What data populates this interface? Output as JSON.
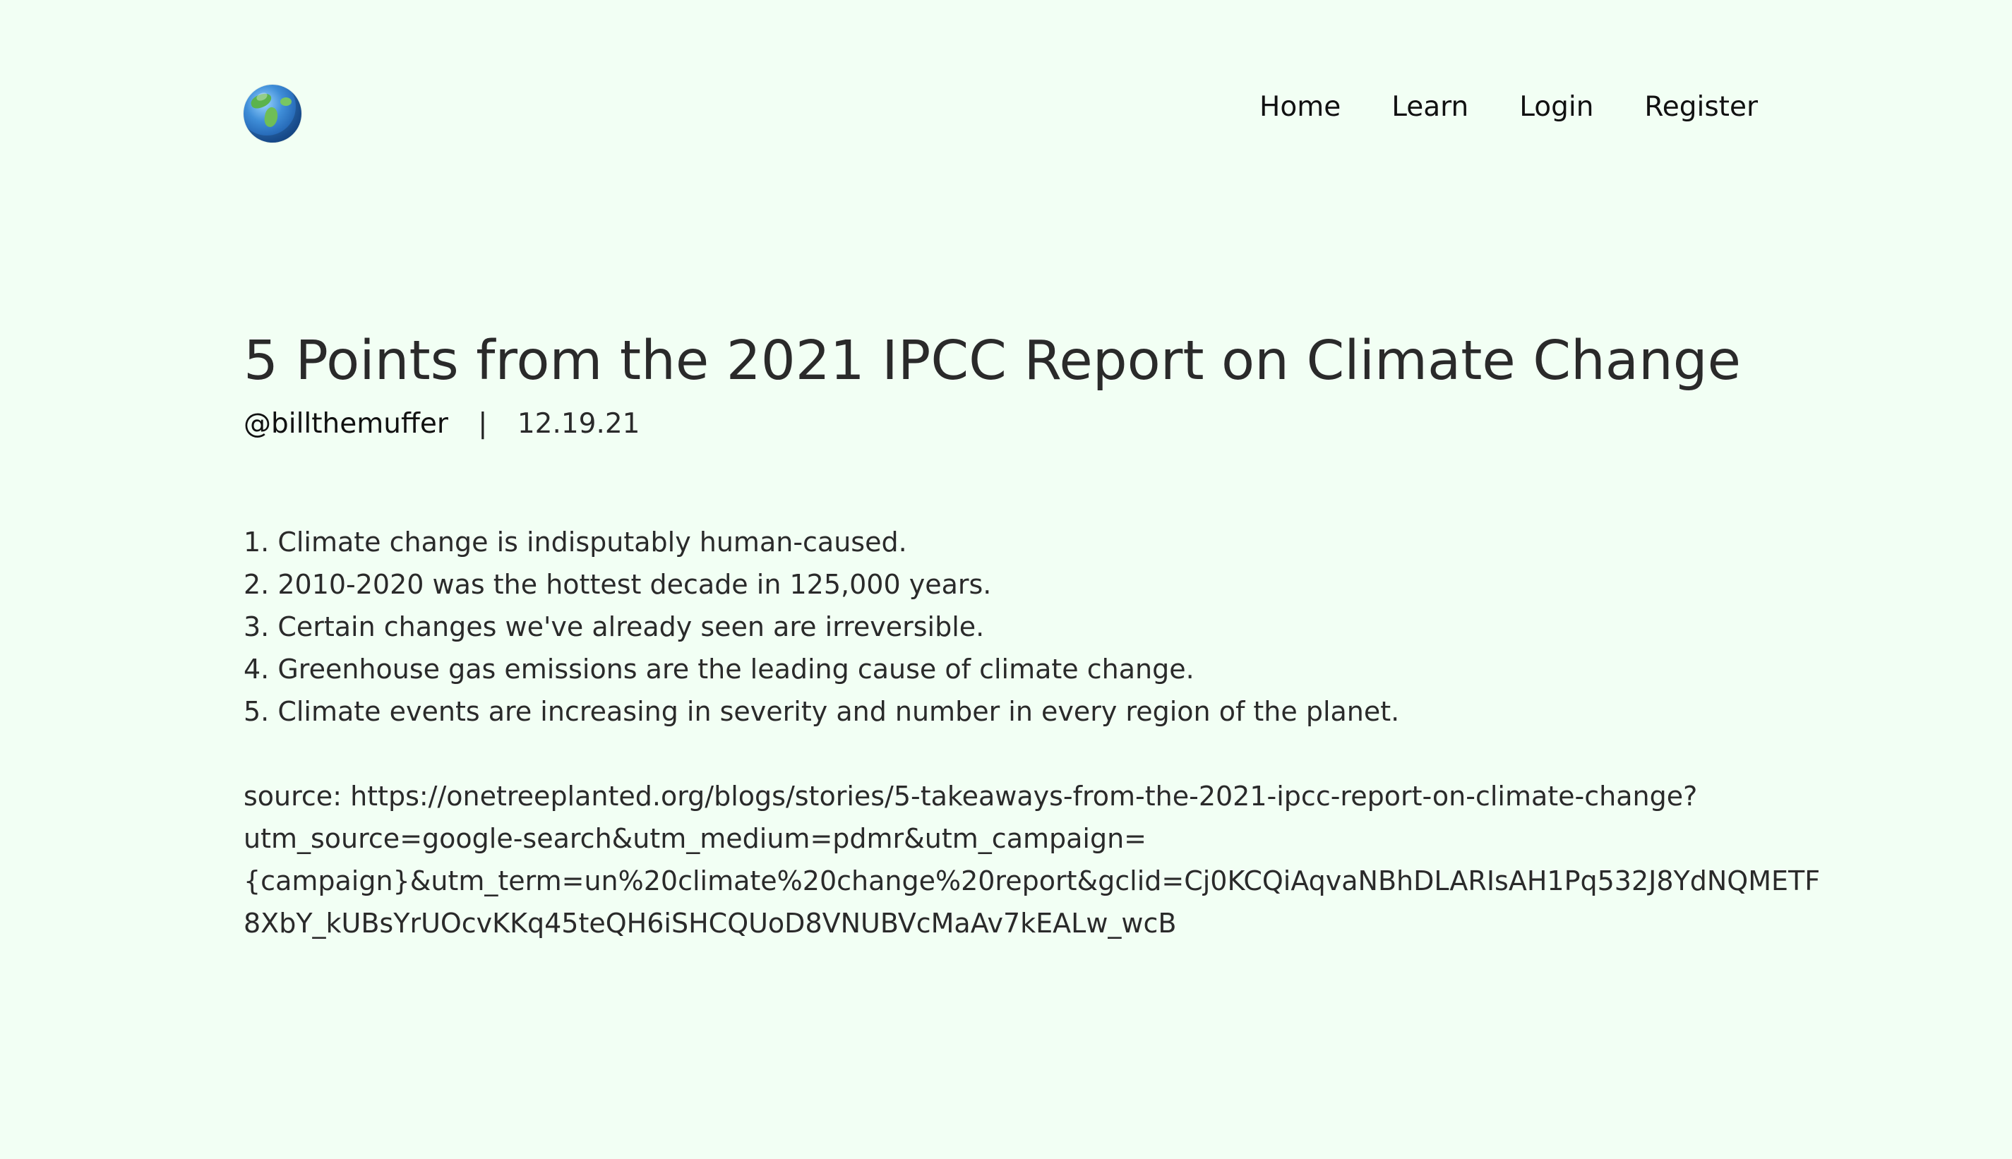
{
  "header": {
    "logo": "globe-icon",
    "nav": [
      {
        "label": "Home"
      },
      {
        "label": "Learn"
      },
      {
        "label": "Login"
      },
      {
        "label": "Register"
      }
    ]
  },
  "article": {
    "title": "5 Points from the 2021 IPCC Report on Climate Change",
    "author": "@billthemuffer",
    "separator": "|",
    "date": "12.19.21",
    "points": [
      "1. Climate change is indisputably human-caused.",
      "2. 2010-2020 was the hottest decade in 125,000 years.",
      "3. Certain changes we've already seen are irreversible.",
      "4. Greenhouse gas emissions are the leading cause of climate change.",
      "5. Climate events are increasing in severity and number in every region of the planet."
    ],
    "source_lines": [
      "source: https://onetreeplanted.org/blogs/stories/5-takeaways-from-the-2021-ipcc-report-on-climate-change?",
      "utm_source=google-search&utm_medium=pdmr&utm_campaign=",
      "{campaign}&utm_term=un%20climate%20change%20report&gclid=Cj0KCQiAqvaNBhDLARIsAH1Pq532J8YdNQMETF",
      "8XbY_kUBsYrUOcvKKq45teQH6iSHCQUoD8VNUBVcMaAv7kEALw_wcB"
    ]
  }
}
